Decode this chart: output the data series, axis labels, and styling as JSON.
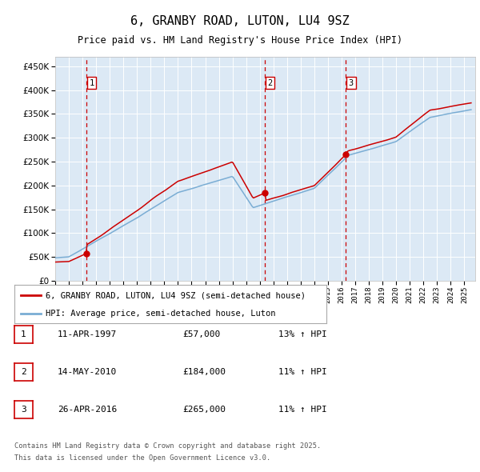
{
  "title": "6, GRANBY ROAD, LUTON, LU4 9SZ",
  "subtitle": "Price paid vs. HM Land Registry's House Price Index (HPI)",
  "legend_line1": "6, GRANBY ROAD, LUTON, LU4 9SZ (semi-detached house)",
  "legend_line2": "HPI: Average price, semi-detached house, Luton",
  "transactions": [
    {
      "num": 1,
      "date": "11-APR-1997",
      "price": 57000,
      "pct": "13%",
      "dir": "↑",
      "year": 1997.28
    },
    {
      "num": 2,
      "date": "14-MAY-2010",
      "price": 184000,
      "pct": "11%",
      "dir": "↑",
      "year": 2010.37
    },
    {
      "num": 3,
      "date": "26-APR-2016",
      "price": 265000,
      "pct": "11%",
      "dir": "↑",
      "year": 2016.32
    }
  ],
  "hpi_color": "#7aadd4",
  "price_color": "#cc0000",
  "bg_color": "#dce9f5",
  "grid_color": "#ffffff",
  "vline_color": "#cc0000",
  "yticks": [
    0,
    50000,
    100000,
    150000,
    200000,
    250000,
    300000,
    350000,
    400000,
    450000
  ],
  "ylim": [
    0,
    470000
  ],
  "footnote1": "Contains HM Land Registry data © Crown copyright and database right 2025.",
  "footnote2": "This data is licensed under the Open Government Licence v3.0.",
  "font_family": "monospace"
}
